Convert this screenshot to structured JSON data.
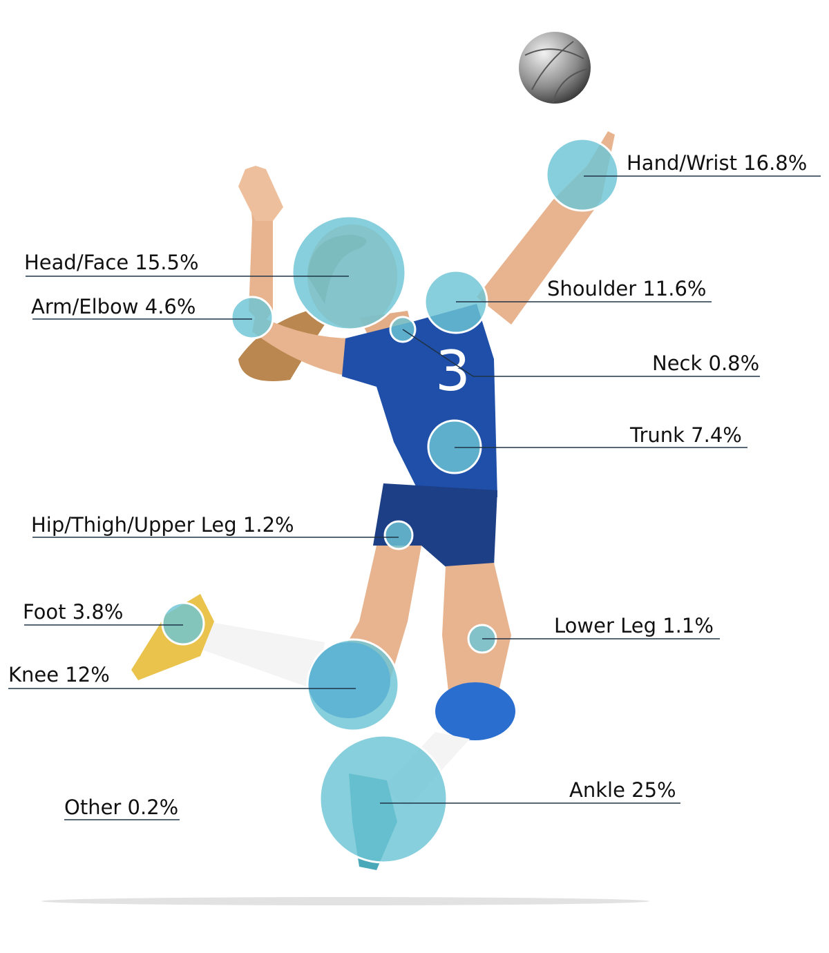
{
  "colors": {
    "marker": "#6cc4d4",
    "marker_border": "#ffffff",
    "line": "#1f3347",
    "jersey": "#1f4fa8",
    "skin": "#e8b48f"
  },
  "regions": [
    {
      "id": "hand-wrist",
      "label": "Hand/Wrist",
      "percent": "16.8%",
      "value": 16.8
    },
    {
      "id": "head-face",
      "label": "Head/Face",
      "percent": "15.5%",
      "value": 15.5
    },
    {
      "id": "shoulder",
      "label": "Shoulder",
      "percent": "11.6%",
      "value": 11.6
    },
    {
      "id": "arm-elbow",
      "label": "Arm/Elbow",
      "percent": "4.6%",
      "value": 4.6
    },
    {
      "id": "neck",
      "label": "Neck",
      "percent": "0.8%",
      "value": 0.8
    },
    {
      "id": "trunk",
      "label": "Trunk",
      "percent": "7.4%",
      "value": 7.4
    },
    {
      "id": "hip-thigh",
      "label": "Hip/Thigh/Upper Leg",
      "percent": "1.2%",
      "value": 1.2
    },
    {
      "id": "foot",
      "label": "Foot",
      "percent": "3.8%",
      "value": 3.8
    },
    {
      "id": "lower-leg",
      "label": "Lower Leg",
      "percent": "1.1%",
      "value": 1.1
    },
    {
      "id": "knee",
      "label": "Knee",
      "percent": "12%",
      "value": 12
    },
    {
      "id": "ankle",
      "label": "Ankle",
      "percent": "25%",
      "value": 25
    },
    {
      "id": "other",
      "label": "Other",
      "percent": "0.2%",
      "value": 0.2
    }
  ],
  "jersey_number": "3"
}
